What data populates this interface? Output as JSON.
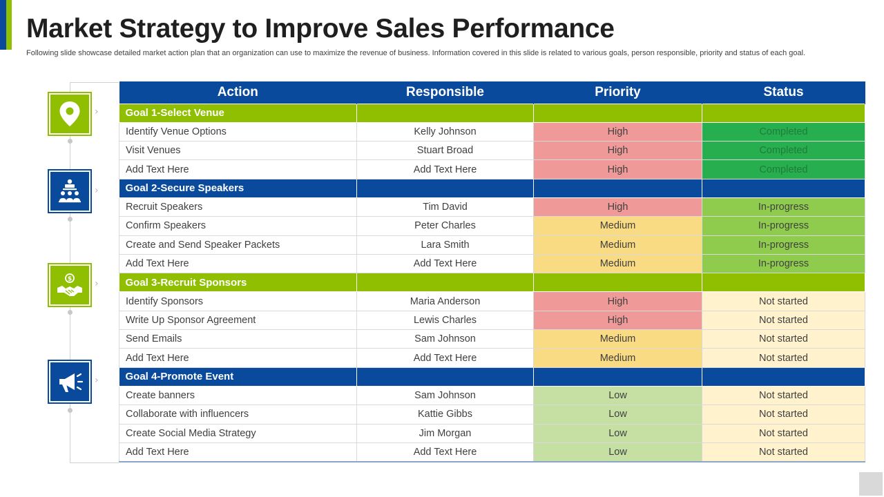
{
  "title": "Market Strategy to Improve Sales Performance",
  "subtitle": "Following slide showcase detailed market action plan that an organization can use to maximize the revenue of business. Information covered in this slide is related to various goals, person responsible, priority and status of each goal.",
  "colors": {
    "brand_blue": "#0a4a9c",
    "brand_green": "#8fbf00",
    "priority_high": "#ef9a98",
    "priority_medium": "#f8db82",
    "priority_low": "#c6e0a4",
    "status_completed": "#27ae4f",
    "status_in_progress": "#8fcc4e",
    "status_not_started": "#fff2cc"
  },
  "table": {
    "headers": {
      "action": "Action",
      "responsible": "Responsible",
      "priority": "Priority",
      "status": "Status"
    },
    "goals": [
      {
        "label": "Goal 1-Select Venue",
        "icon": "location-pin-icon",
        "rows": [
          {
            "action": "Identify Venue Options",
            "responsible": "Kelly Johnson",
            "priority": "High",
            "status": "Completed"
          },
          {
            "action": "Visit Venues",
            "responsible": "Stuart Broad",
            "priority": "High",
            "status": "Completed"
          },
          {
            "action": "Add Text Here",
            "responsible": "Add Text Here",
            "priority": "High",
            "status": "Completed"
          }
        ]
      },
      {
        "label": "Goal 2-Secure Speakers",
        "icon": "speaker-audience-icon",
        "rows": [
          {
            "action": "Recruit Speakers",
            "responsible": "Tim David",
            "priority": "High",
            "status": "In-progress"
          },
          {
            "action": "Confirm Speakers",
            "responsible": "Peter Charles",
            "priority": "Medium",
            "status": "In-progress"
          },
          {
            "action": "Create and Send Speaker Packets",
            "responsible": "Lara Smith",
            "priority": "Medium",
            "status": "In-progress"
          },
          {
            "action": "Add Text Here",
            "responsible": "Add Text Here",
            "priority": "Medium",
            "status": "In-progress"
          }
        ]
      },
      {
        "label": "Goal 3-Recruit Sponsors",
        "icon": "handshake-dollar-icon",
        "rows": [
          {
            "action": "Identify Sponsors",
            "responsible": "Maria Anderson",
            "priority": "High",
            "status": "Not started"
          },
          {
            "action": "Write Up Sponsor Agreement",
            "responsible": "Lewis Charles",
            "priority": "High",
            "status": "Not started"
          },
          {
            "action": "Send Emails",
            "responsible": "Sam Johnson",
            "priority": "Medium",
            "status": "Not started"
          },
          {
            "action": "Add Text Here",
            "responsible": "Add Text Here",
            "priority": "Medium",
            "status": "Not started"
          }
        ]
      },
      {
        "label": "Goal 4-Promote Event",
        "icon": "megaphone-icon",
        "rows": [
          {
            "action": "Create banners",
            "responsible": "Sam Johnson",
            "priority": "Low",
            "status": "Not started"
          },
          {
            "action": "Collaborate with influencers",
            "responsible": "Kattie Gibbs",
            "priority": "Low",
            "status": "Not started"
          },
          {
            "action": "Create Social Media Strategy",
            "responsible": "Jim Morgan",
            "priority": "Low",
            "status": "Not started"
          },
          {
            "action": "Add Text Here",
            "responsible": "Add Text Here",
            "priority": "Low",
            "status": "Not started"
          }
        ]
      }
    ]
  }
}
